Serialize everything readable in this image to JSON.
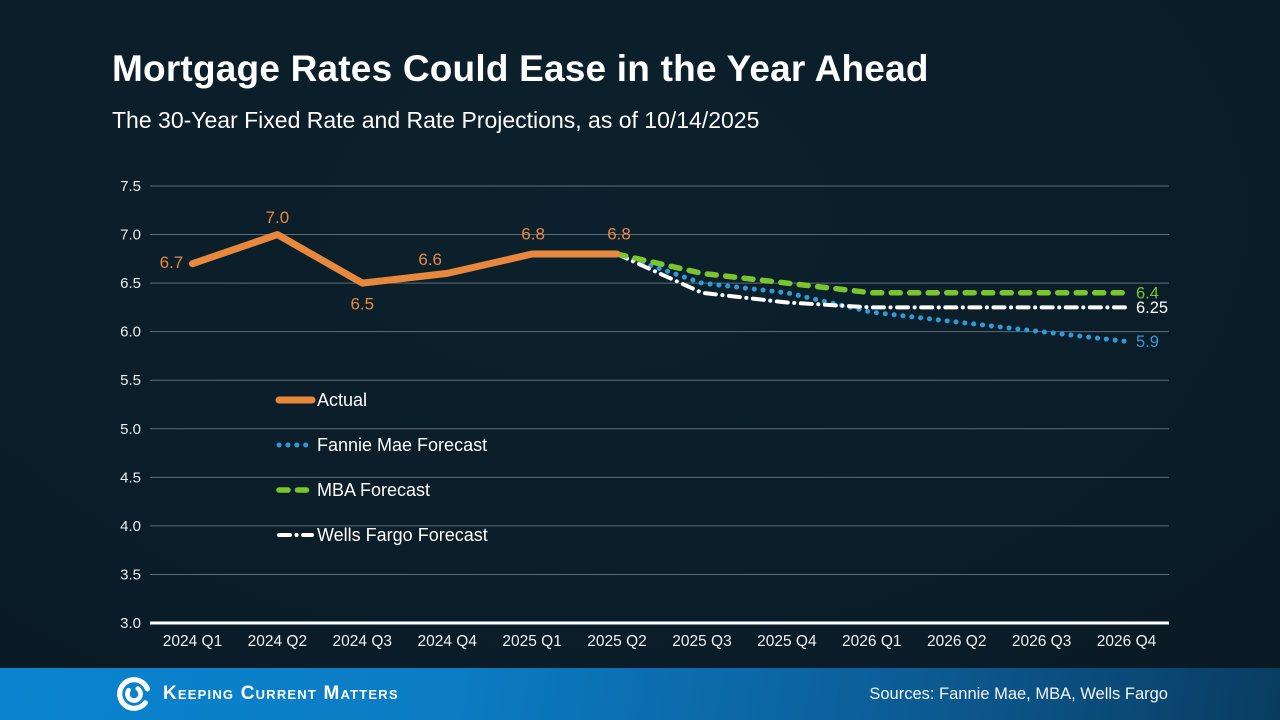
{
  "header": {
    "title": "Mortgage Rates Could Ease in the Year Ahead",
    "subtitle": "The 30-Year Fixed Rate and Rate Projections, as of 10/14/2025"
  },
  "chart_data": {
    "type": "line",
    "title": "Mortgage Rates Could Ease in the Year Ahead",
    "categories": [
      "2024 Q1",
      "2024 Q2",
      "2024 Q3",
      "2024 Q4",
      "2025 Q1",
      "2025 Q2",
      "2025 Q3",
      "2025 Q4",
      "2026 Q1",
      "2026 Q2",
      "2026 Q3",
      "2026 Q4"
    ],
    "series": [
      {
        "name": "Actual",
        "color": "#e8883c",
        "style": "solid",
        "values": [
          6.7,
          7.0,
          6.5,
          6.6,
          6.8,
          6.8,
          null,
          null,
          null,
          null,
          null,
          null
        ],
        "data_labels": [
          "6.7",
          "7.0",
          "6.5",
          "6.6",
          "6.8",
          "6.8"
        ]
      },
      {
        "name": "Fannie Mae Forecast",
        "color": "#2f9ad8",
        "style": "dotted",
        "values": [
          null,
          null,
          null,
          null,
          null,
          6.8,
          6.5,
          6.4,
          6.2,
          6.1,
          6.0,
          5.9
        ],
        "end_label": "5.9"
      },
      {
        "name": "MBA Forecast",
        "color": "#7ac52e",
        "style": "dashed",
        "values": [
          null,
          null,
          null,
          null,
          null,
          6.8,
          6.6,
          6.5,
          6.4,
          6.4,
          6.4,
          6.4
        ],
        "end_label": "6.4"
      },
      {
        "name": "Wells Fargo Forecast",
        "color": "#ffffff",
        "style": "dashdot",
        "values": [
          null,
          null,
          null,
          null,
          null,
          6.8,
          6.4,
          6.3,
          6.25,
          6.25,
          6.25,
          6.25
        ],
        "end_label": "6.25"
      }
    ],
    "ylim": [
      3.0,
      7.5
    ],
    "yticks": [
      "7.5",
      "7.0",
      "6.5",
      "6.0",
      "5.5",
      "5.0",
      "4.5",
      "4.0",
      "3.5",
      "3.0"
    ],
    "grid": true,
    "grid_color": "#5d6d77",
    "axis_color": "#ffffff",
    "legend_position": "inside-left"
  },
  "footer": {
    "brand": "Keeping Current Matters",
    "sources": "Sources: Fannie Mae, MBA, Wells Fargo"
  }
}
